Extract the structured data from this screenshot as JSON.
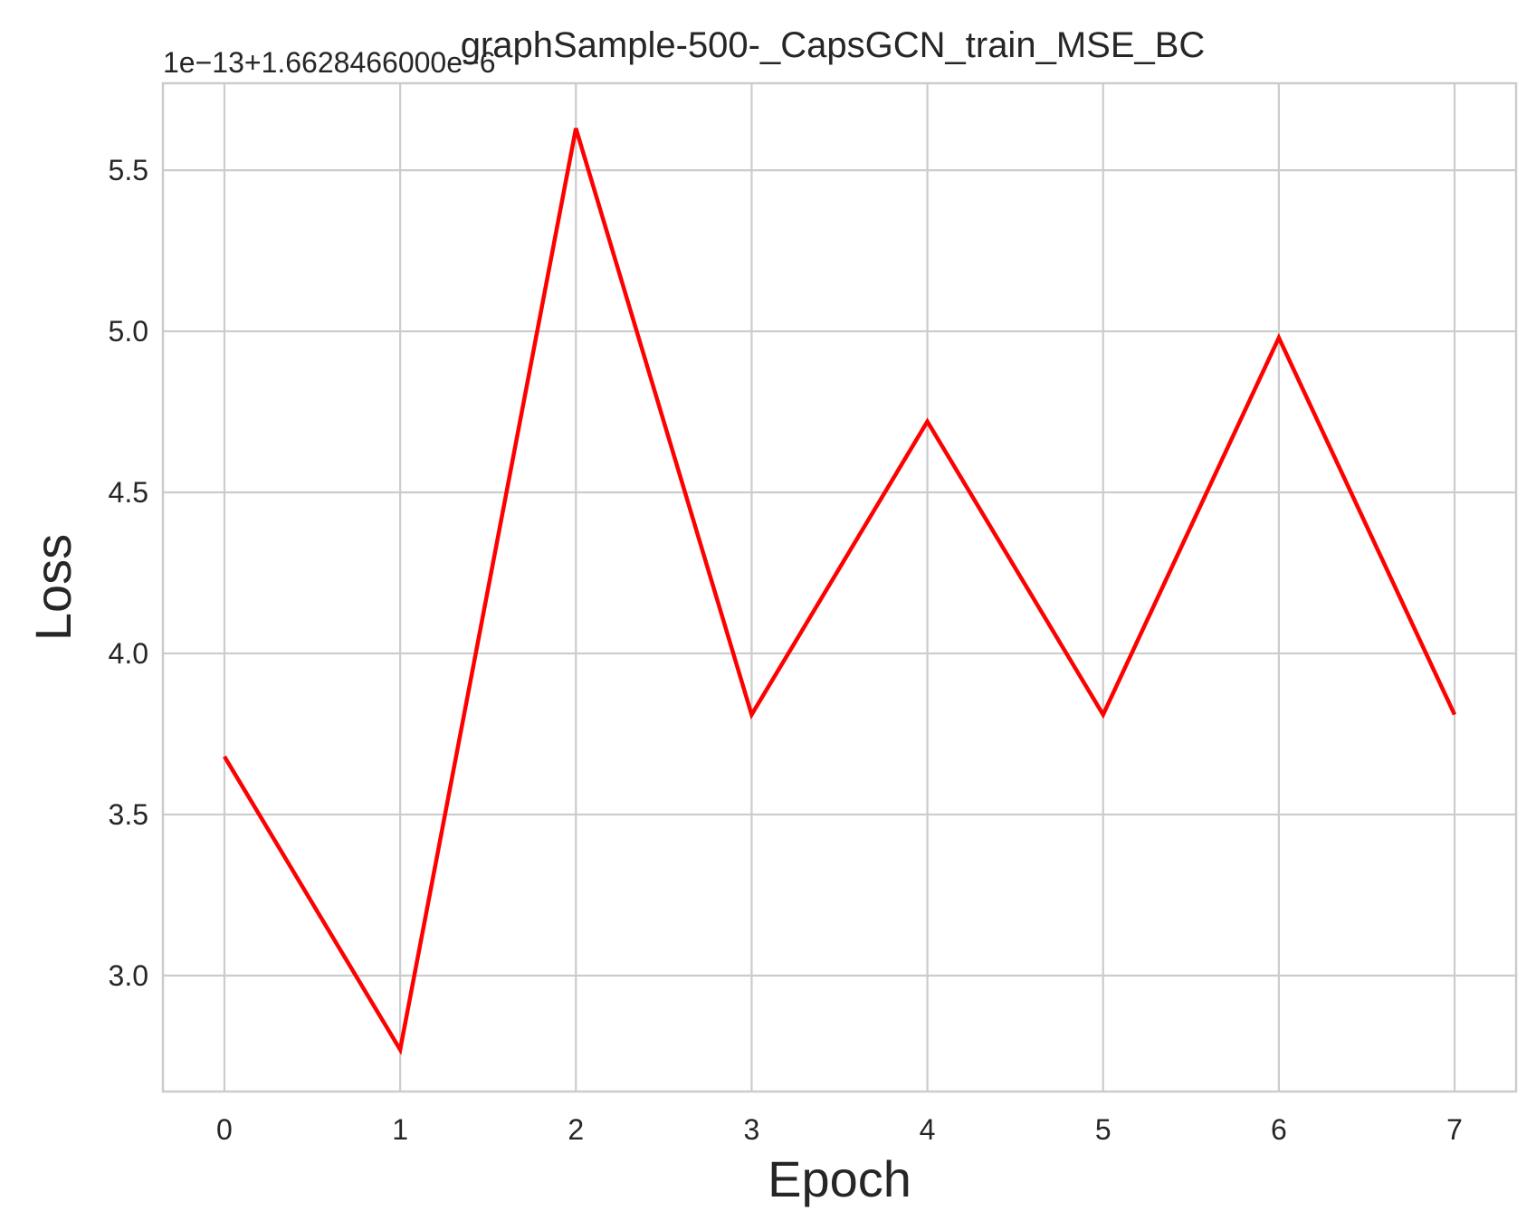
{
  "chart_data": {
    "type": "line",
    "title": "graphSample-500-_CapsGCN_train_MSE_BC",
    "xlabel": "Epoch",
    "ylabel": "Loss",
    "offset_text": "1e−13+1.6628466000e−6",
    "x": [
      0,
      1,
      2,
      3,
      4,
      5,
      6,
      7
    ],
    "series": [
      {
        "values": [
          3.68,
          2.77,
          5.63,
          3.81,
          4.72,
          3.81,
          4.98,
          3.81
        ],
        "color": "#ff0000"
      }
    ],
    "xticks": [
      0,
      1,
      2,
      3,
      4,
      5,
      6,
      7
    ],
    "xtick_labels": [
      "0",
      "1",
      "2",
      "3",
      "4",
      "5",
      "6",
      "7"
    ],
    "yticks": [
      3.0,
      3.5,
      4.0,
      4.5,
      5.0,
      5.5
    ],
    "ytick_labels": [
      "3.0",
      "3.5",
      "4.0",
      "4.5",
      "5.0",
      "5.5"
    ],
    "xlim": [
      -0.35,
      7.35
    ],
    "ylim": [
      2.64,
      5.77
    ],
    "grid": true,
    "colors": {
      "grid": "#cccccc",
      "spine": "#cccccc",
      "text": "#262626",
      "line": "#ff0000"
    }
  }
}
